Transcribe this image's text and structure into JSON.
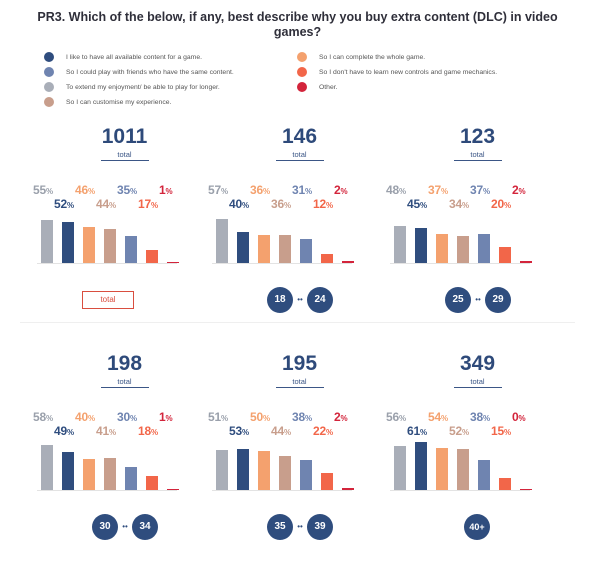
{
  "title": "PR3. Which of the below, if any, best describe why you buy extra content (DLC) in video games?",
  "legend": [
    {
      "label": "I like to have all available content for a game.",
      "color": "#2f4d7e"
    },
    {
      "label": "So I could play with friends who have the same content.",
      "color": "#6f84b0"
    },
    {
      "label": "To extend my enjoyment/ be able to play for longer.",
      "color": "#a9aeb8"
    },
    {
      "label": "So I can customise my experience.",
      "color": "#c89e8c"
    },
    {
      "label": "So I can complete the whole game.",
      "color": "#f4a16e"
    },
    {
      "label": "So I don't have to learn new controls and game mechanics.",
      "color": "#f26649"
    },
    {
      "label": "Other.",
      "color": "#d3243b"
    }
  ],
  "total_word": "total",
  "pct_sign": "%",
  "chart_data": [
    {
      "type": "bar",
      "segment": "total",
      "base": "1011",
      "categories": [
        "To extend my enjoyment/ be able to play for longer.",
        "I like to have all available content for a game.",
        "So I can complete the whole game.",
        "So I can customise my experience.",
        "So I could play with friends who have the same content.",
        "So I don't have to learn new controls and game mechanics.",
        "Other."
      ],
      "values": [
        55,
        52,
        46,
        44,
        35,
        17,
        1
      ]
    },
    {
      "type": "bar",
      "segment": "18-24",
      "age_from": "18",
      "age_to": "24",
      "base": "146",
      "categories": [
        "To extend my enjoyment/ be able to play for longer.",
        "I like to have all available content for a game.",
        "So I can complete the whole game.",
        "So I can customise my experience.",
        "So I could play with friends who have the same content.",
        "So I don't have to learn new controls and game mechanics.",
        "Other."
      ],
      "values": [
        57,
        40,
        36,
        36,
        31,
        12,
        2
      ]
    },
    {
      "type": "bar",
      "segment": "25-29",
      "age_from": "25",
      "age_to": "29",
      "base": "123",
      "categories": [
        "To extend my enjoyment/ be able to play for longer.",
        "I like to have all available content for a game.",
        "So I can complete the whole game.",
        "So I can customise my experience.",
        "So I could play with friends who have the same content.",
        "So I don't have to learn new controls and game mechanics.",
        "Other."
      ],
      "values": [
        48,
        45,
        37,
        34,
        37,
        20,
        2
      ]
    },
    {
      "type": "bar",
      "segment": "30-34",
      "age_from": "30",
      "age_to": "34",
      "base": "198",
      "categories": [
        "To extend my enjoyment/ be able to play for longer.",
        "I like to have all available content for a game.",
        "So I can complete the whole game.",
        "So I can customise my experience.",
        "So I could play with friends who have the same content.",
        "So I don't have to learn new controls and game mechanics.",
        "Other."
      ],
      "values": [
        58,
        49,
        40,
        41,
        30,
        18,
        1
      ]
    },
    {
      "type": "bar",
      "segment": "35-39",
      "age_from": "35",
      "age_to": "39",
      "base": "195",
      "categories": [
        "To extend my enjoyment/ be able to play for longer.",
        "I like to have all available content for a game.",
        "So I can complete the whole game.",
        "So I can customise my experience.",
        "So I could play with friends who have the same content.",
        "So I don't have to learn new controls and game mechanics.",
        "Other."
      ],
      "values": [
        51,
        53,
        50,
        44,
        38,
        22,
        2
      ]
    },
    {
      "type": "bar",
      "segment": "40+",
      "age_single": "40+",
      "base": "349",
      "categories": [
        "To extend my enjoyment/ be able to play for longer.",
        "I like to have all available content for a game.",
        "So I can complete the whole game.",
        "So I can customise my experience.",
        "So I could play with friends who have the same content.",
        "So I don't have to learn new controls and game mechanics.",
        "Other."
      ],
      "values": [
        56,
        61,
        54,
        52,
        38,
        15,
        0
      ]
    }
  ]
}
